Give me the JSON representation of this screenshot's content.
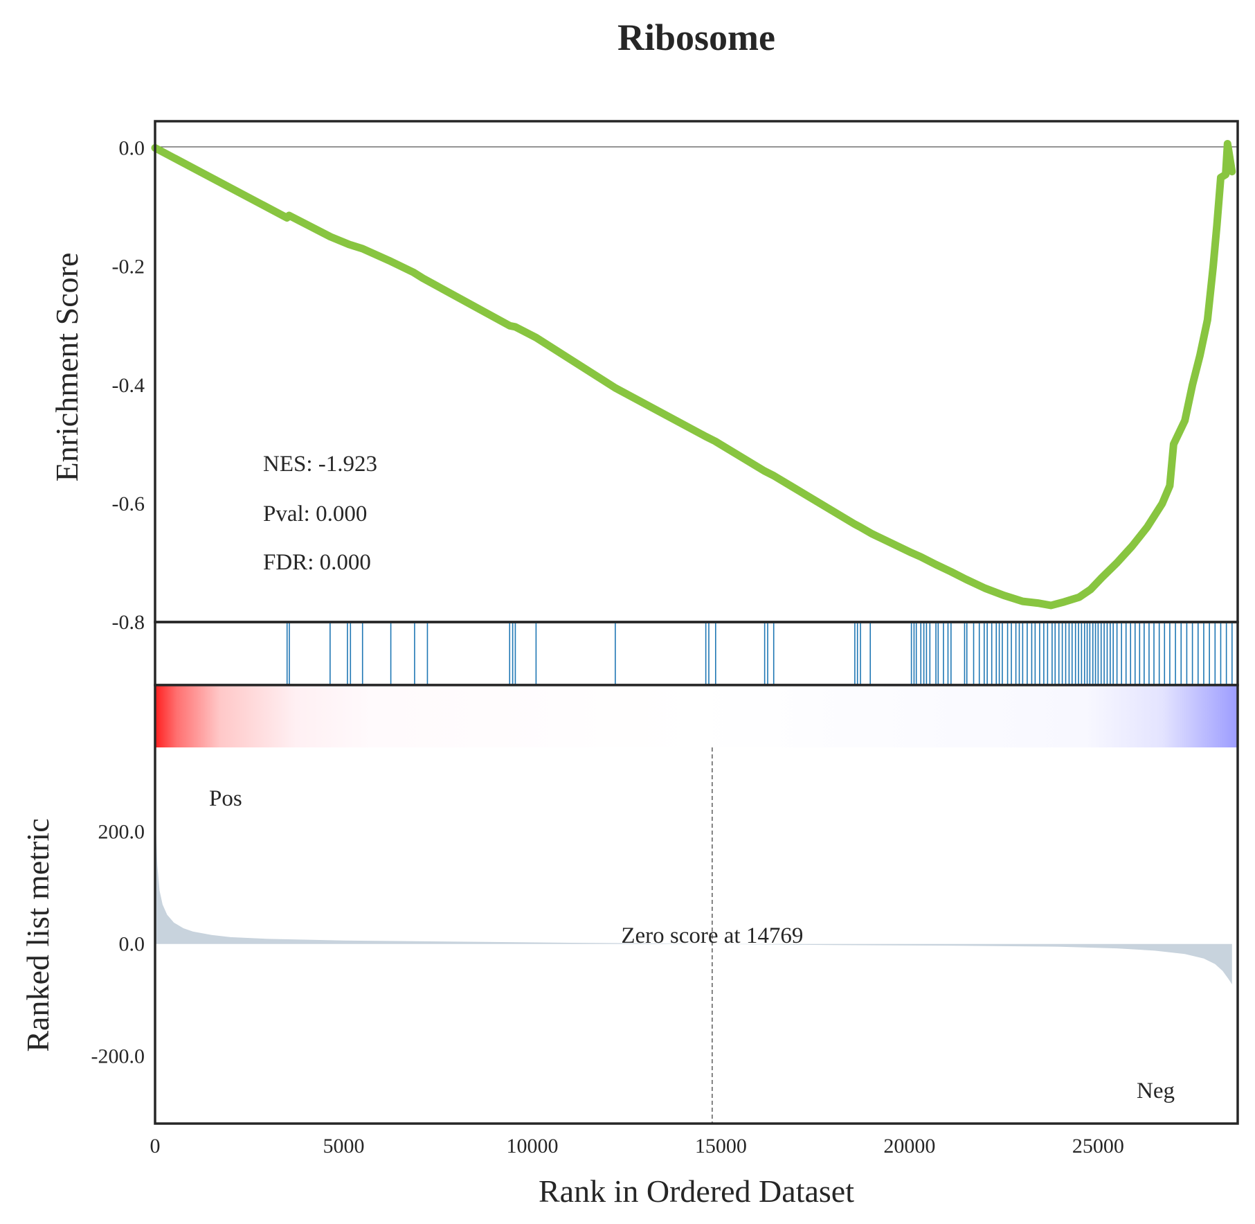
{
  "chart_data": {
    "type": "line",
    "title": "Ribosome",
    "xlabel": "Rank in Ordered Dataset",
    "xlim": [
      0,
      28700
    ],
    "x_ticks": [
      "0",
      "5000",
      "10000",
      "15000",
      "20000",
      "25000"
    ],
    "x_tick_values": [
      0,
      5000,
      10000,
      15000,
      20000,
      25000
    ],
    "colors": {
      "es_line": "#88c540",
      "hits": "#1f77b4",
      "metric_fill": "#c8d3dd",
      "pos": "#ff0000",
      "neg": "#0000ff"
    },
    "enrichment": {
      "ylabel": "Enrichment Score",
      "ylim": [
        -0.8,
        0.045
      ],
      "y_ticks": [
        "0.0",
        "-0.2",
        "-0.4",
        "-0.6",
        "-0.8"
      ],
      "y_tick_values": [
        0.0,
        -0.2,
        -0.4,
        -0.6,
        -0.8
      ],
      "stats": {
        "nes": "NES: -1.923",
        "pval": "Pval: 0.000",
        "fdr": "FDR: 0.000"
      },
      "points": [
        [
          0,
          0.0
        ],
        [
          3500,
          -0.118
        ],
        [
          3550,
          -0.114
        ],
        [
          4650,
          -0.15
        ],
        [
          5150,
          -0.163
        ],
        [
          5500,
          -0.17
        ],
        [
          6200,
          -0.19
        ],
        [
          6850,
          -0.21
        ],
        [
          7100,
          -0.22
        ],
        [
          9400,
          -0.3
        ],
        [
          9550,
          -0.302
        ],
        [
          10100,
          -0.32
        ],
        [
          12200,
          -0.405
        ],
        [
          14600,
          -0.487
        ],
        [
          14850,
          -0.495
        ],
        [
          16150,
          -0.545
        ],
        [
          16400,
          -0.553
        ],
        [
          18550,
          -0.635
        ],
        [
          18700,
          -0.64
        ],
        [
          19000,
          -0.651
        ],
        [
          20050,
          -0.683
        ],
        [
          20300,
          -0.69
        ],
        [
          20700,
          -0.703
        ],
        [
          21100,
          -0.715
        ],
        [
          21500,
          -0.728
        ],
        [
          22000,
          -0.743
        ],
        [
          22500,
          -0.755
        ],
        [
          23000,
          -0.765
        ],
        [
          23400,
          -0.768
        ],
        [
          23750,
          -0.772
        ],
        [
          24100,
          -0.766
        ],
        [
          24500,
          -0.758
        ],
        [
          24800,
          -0.745
        ],
        [
          25100,
          -0.725
        ],
        [
          25500,
          -0.7
        ],
        [
          25900,
          -0.672
        ],
        [
          26300,
          -0.64
        ],
        [
          26700,
          -0.6
        ],
        [
          26900,
          -0.57
        ],
        [
          27000,
          -0.5
        ],
        [
          27300,
          -0.46
        ],
        [
          27500,
          -0.4
        ],
        [
          27700,
          -0.35
        ],
        [
          27900,
          -0.29
        ],
        [
          28050,
          -0.2
        ],
        [
          28150,
          -0.13
        ],
        [
          28250,
          -0.05
        ],
        [
          28380,
          -0.045
        ],
        [
          28430,
          0.007
        ],
        [
          28550,
          -0.04
        ]
      ]
    },
    "hits": [
      3500,
      3560,
      4640,
      5100,
      5180,
      5500,
      6250,
      6880,
      7220,
      9400,
      9480,
      9550,
      10100,
      12200,
      14600,
      14680,
      14860,
      16160,
      16240,
      16400,
      18550,
      18620,
      18700,
      18960,
      20050,
      20120,
      20180,
      20300,
      20380,
      20450,
      20540,
      20700,
      20760,
      20900,
      21020,
      21100,
      21460,
      21520,
      21700,
      21850,
      21980,
      22060,
      22180,
      22300,
      22380,
      22460,
      22600,
      22700,
      22820,
      22910,
      23000,
      23120,
      23240,
      23330,
      23450,
      23560,
      23660,
      23780,
      23860,
      23960,
      24050,
      24140,
      24230,
      24310,
      24400,
      24480,
      24560,
      24640,
      24710,
      24780,
      24860,
      24930,
      25000,
      25080,
      25160,
      25240,
      25320,
      25400,
      25500,
      25620,
      25740,
      25860,
      25980,
      26100,
      26220,
      26350,
      26480,
      26620,
      26760,
      26900,
      27050,
      27200,
      27350,
      27500,
      27650,
      27800,
      27950,
      28100,
      28250,
      28400,
      28550
    ],
    "ranked_metric": {
      "ylabel": "Ranked list metric",
      "ylim": [
        -320,
        350
      ],
      "y_ticks": [
        "200.0",
        "0.0",
        "-200.0"
      ],
      "y_tick_values": [
        200,
        0,
        -200
      ],
      "pos_label": "Pos",
      "neg_label": "Neg",
      "zero_score_label": "Zero score at 14769",
      "zero_score_x": 14769,
      "points": [
        [
          0,
          280
        ],
        [
          20,
          210
        ],
        [
          60,
          140
        ],
        [
          120,
          95
        ],
        [
          200,
          70
        ],
        [
          320,
          52
        ],
        [
          500,
          38
        ],
        [
          750,
          28
        ],
        [
          1000,
          22
        ],
        [
          1500,
          16
        ],
        [
          2000,
          12
        ],
        [
          3000,
          9
        ],
        [
          5000,
          6
        ],
        [
          8000,
          4
        ],
        [
          11000,
          2
        ],
        [
          14769,
          0
        ],
        [
          18000,
          -2
        ],
        [
          21000,
          -3
        ],
        [
          24000,
          -5
        ],
        [
          25500,
          -8
        ],
        [
          26500,
          -12
        ],
        [
          27300,
          -18
        ],
        [
          27800,
          -26
        ],
        [
          28100,
          -36
        ],
        [
          28300,
          -48
        ],
        [
          28450,
          -62
        ],
        [
          28550,
          -72
        ]
      ]
    }
  }
}
